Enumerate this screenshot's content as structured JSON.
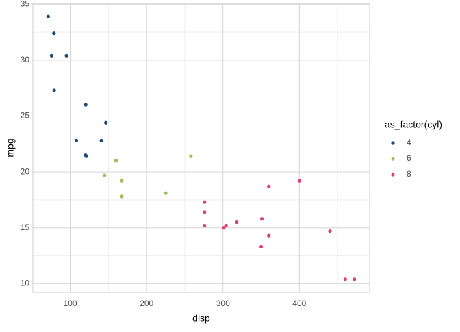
{
  "chart_data": {
    "type": "scatter",
    "x_label": "disp",
    "y_label": "mpg",
    "legend_title": "as_factor(cyl)",
    "xlim": [
      51.1,
      492
    ],
    "ylim": [
      9.225,
      35.075
    ],
    "xticks": [
      100,
      200,
      300,
      400
    ],
    "yticks": [
      10,
      15,
      20,
      25,
      30,
      35
    ],
    "x_minor_grid": [
      150,
      250,
      350,
      450
    ],
    "y_minor_grid": [
      12.5,
      17.5,
      22.5,
      27.5,
      32.5
    ],
    "grid": true,
    "legend": "right",
    "series": [
      {
        "name": "4",
        "color": "#1a4a78",
        "x": [
          108,
          146.7,
          140.8,
          78.7,
          75.7,
          71.1,
          120.1,
          79,
          120.3,
          95.1,
          121
        ],
        "values": [
          22.8,
          24.4,
          22.8,
          32.4,
          30.4,
          33.9,
          21.5,
          27.3,
          26,
          30.4,
          21.4
        ]
      },
      {
        "name": "6",
        "color": "#9bc15a",
        "x": [
          160,
          160,
          258,
          225,
          167.6,
          167.6,
          145
        ],
        "values": [
          21,
          21,
          21.4,
          18.1,
          19.2,
          17.8,
          19.7
        ]
      },
      {
        "name": "8",
        "color": "#e63b70",
        "x": [
          360,
          360,
          275.8,
          275.8,
          275.8,
          472,
          460,
          440,
          318,
          304,
          350,
          400,
          351,
          301
        ],
        "values": [
          18.7,
          14.3,
          16.4,
          17.3,
          15.2,
          10.4,
          10.4,
          14.7,
          15.5,
          15.2,
          13.3,
          19.2,
          15.8,
          15
        ]
      }
    ]
  }
}
